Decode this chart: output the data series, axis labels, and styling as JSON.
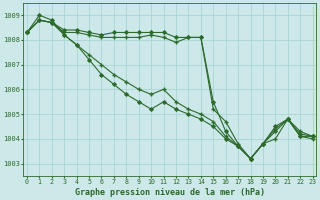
{
  "x": [
    0,
    1,
    2,
    3,
    4,
    5,
    6,
    7,
    8,
    9,
    10,
    11,
    12,
    13,
    14,
    15,
    16,
    17,
    18,
    19,
    20,
    21,
    22,
    23
  ],
  "series": [
    [
      1008.3,
      1008.8,
      1008.7,
      1008.3,
      1008.3,
      1008.2,
      1008.1,
      1008.1,
      1008.1,
      1008.1,
      1008.2,
      1008.1,
      1007.9,
      1008.1,
      1008.1,
      1005.2,
      1004.7,
      1003.8,
      1003.2,
      1003.8,
      1004.4,
      1004.8,
      1004.3,
      1004.1
    ],
    [
      1008.3,
      1008.8,
      1008.7,
      1008.4,
      1008.4,
      1008.3,
      1008.2,
      1008.3,
      1008.3,
      1008.3,
      1008.3,
      1008.3,
      1008.1,
      1008.1,
      1008.1,
      1005.5,
      1004.3,
      1003.7,
      1003.2,
      1003.8,
      1004.5,
      1004.8,
      1004.2,
      1004.1
    ],
    [
      1008.3,
      1008.8,
      1008.7,
      1008.2,
      1007.8,
      1007.4,
      1007.0,
      1006.6,
      1006.3,
      1006.0,
      1005.8,
      1006.0,
      1005.5,
      1005.2,
      1005.0,
      1004.7,
      1004.1,
      1003.7,
      1003.2,
      1003.8,
      1004.0,
      1004.8,
      1004.1,
      1004.0
    ],
    [
      1008.3,
      1009.0,
      1008.8,
      1008.2,
      1007.8,
      1007.2,
      1006.6,
      1006.2,
      1005.8,
      1005.5,
      1005.2,
      1005.5,
      1005.2,
      1005.0,
      1004.8,
      1004.5,
      1004.0,
      1003.7,
      1003.2,
      1003.8,
      1004.3,
      1004.8,
      1004.1,
      1004.1
    ]
  ],
  "marker_types": [
    "+",
    "D",
    "+",
    "D"
  ],
  "color": "#2d6a2d",
  "bg_color": "#cce8e8",
  "grid_color": "#aad4d4",
  "text_color": "#2d6a2d",
  "xlabel": "Graphe pression niveau de la mer (hPa)",
  "ylim": [
    1002.5,
    1009.5
  ],
  "yticks": [
    1003,
    1004,
    1005,
    1006,
    1007,
    1008,
    1009
  ],
  "xticks": [
    0,
    1,
    2,
    3,
    4,
    5,
    6,
    7,
    8,
    9,
    10,
    11,
    12,
    13,
    14,
    15,
    16,
    17,
    18,
    19,
    20,
    21,
    22,
    23
  ],
  "figsize": [
    3.2,
    2.0
  ],
  "dpi": 100
}
